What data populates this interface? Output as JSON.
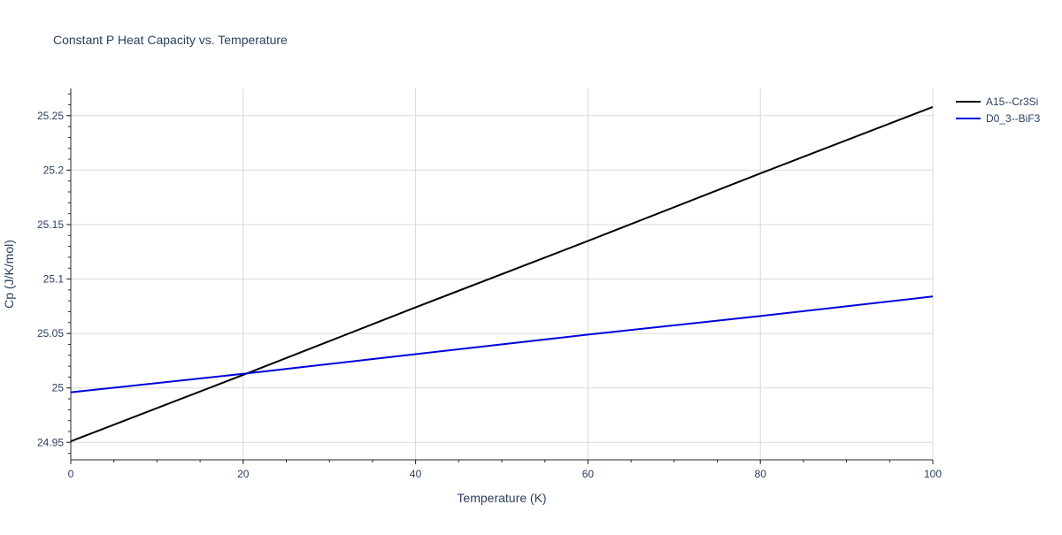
{
  "chart_data": {
    "type": "line",
    "title": "Constant P Heat Capacity vs. Temperature",
    "xlabel": "Temperature (K)",
    "ylabel": "Cp (J/K/mol)",
    "xlim": [
      0,
      100
    ],
    "ylim": [
      24.934,
      25.275
    ],
    "x_ticks": [
      0,
      20,
      40,
      60,
      80,
      100
    ],
    "x_tick_labels": [
      "0",
      "20",
      "40",
      "60",
      "80",
      "100"
    ],
    "y_ticks": [
      24.95,
      25.0,
      25.05,
      25.1,
      25.15,
      25.2,
      25.25
    ],
    "y_tick_labels": [
      "24.95",
      "25",
      "25.05",
      "25.1",
      "25.15",
      "25.2",
      "25.25"
    ],
    "grid": true,
    "legend_position": "top-right",
    "series": [
      {
        "name": "A15--Cr3Si",
        "color": "#000000",
        "x": [
          0,
          20,
          40,
          60,
          80,
          100
        ],
        "y": [
          24.951,
          25.012,
          25.074,
          25.135,
          25.197,
          25.258
        ]
      },
      {
        "name": "D0_3--BiF3",
        "color": "#0000dd",
        "x": [
          0,
          20,
          40,
          60,
          80,
          100
        ],
        "y": [
          24.996,
          25.013,
          25.031,
          25.049,
          25.066,
          25.084
        ]
      }
    ]
  }
}
